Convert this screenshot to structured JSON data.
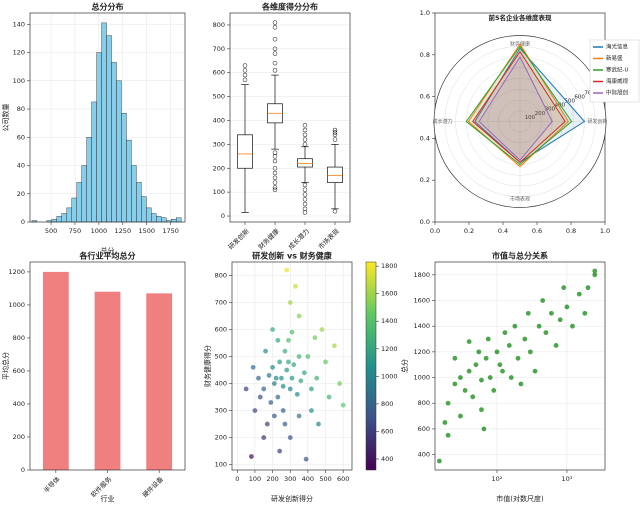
{
  "chart_data": [
    {
      "type": "histogram",
      "title": "总分分布",
      "xlabel": "总分",
      "ylabel": "公司数量",
      "color": "#87ceeb",
      "grid": true,
      "bins": [
        300,
        352,
        404,
        456,
        508,
        560,
        612,
        664,
        716,
        768,
        820,
        872,
        924,
        976,
        1028,
        1080,
        1132,
        1184,
        1236,
        1288,
        1340,
        1392,
        1444,
        1496,
        1548,
        1600,
        1652,
        1704,
        1756,
        1808,
        1860
      ],
      "values": [
        1,
        0,
        0,
        1,
        2,
        4,
        6,
        10,
        17,
        28,
        40,
        60,
        85,
        120,
        141,
        132,
        113,
        100,
        77,
        58,
        40,
        28,
        18,
        10,
        6,
        4,
        3,
        1,
        2,
        3
      ],
      "xlim": [
        280,
        1900
      ],
      "xticks": [
        500,
        750,
        1000,
        1250,
        1500,
        1750
      ],
      "ylim": [
        0,
        148
      ],
      "yticks": [
        0,
        20,
        40,
        60,
        80,
        100,
        120,
        140
      ]
    },
    {
      "type": "box",
      "title": "各维度得分分布",
      "grid": true,
      "categories": [
        "研发创新",
        "财务健康",
        "成长潜力",
        "市场表现"
      ],
      "boxes": [
        {
          "whislo": 15,
          "q1": 200,
          "med": 260,
          "q3": 340,
          "whishi": 550,
          "fliers": [
            570,
            590,
            610,
            630
          ]
        },
        {
          "whislo": 280,
          "q1": 390,
          "med": 430,
          "q3": 470,
          "whishi": 590,
          "fliers": [
            610,
            640,
            680,
            700,
            740,
            790,
            810,
            265,
            250,
            230,
            200,
            180,
            160,
            140,
            120,
            110
          ]
        },
        {
          "whislo": 140,
          "q1": 205,
          "med": 220,
          "q3": 240,
          "whishi": 290,
          "fliers": [
            300,
            320,
            340,
            360,
            380,
            130,
            110,
            90,
            70,
            50,
            30,
            15
          ]
        },
        {
          "whislo": 30,
          "q1": 140,
          "med": 170,
          "q3": 205,
          "whishi": 300,
          "fliers": [
            320,
            340,
            350,
            360,
            20
          ]
        }
      ],
      "ylim": [
        -25,
        850
      ],
      "yticks": [
        0,
        100,
        200,
        300,
        400,
        500,
        600,
        700,
        800
      ]
    },
    {
      "type": "radar",
      "title": "前5名企业各维度表现",
      "axes": [
        "研发创新",
        "财务健康",
        "成长潜力",
        "市场表现"
      ],
      "rlim": [
        0,
        800
      ],
      "rticks": [
        100,
        200,
        300,
        400,
        500,
        600,
        700
      ],
      "xlim": [
        0,
        1
      ],
      "ylim": [
        0,
        1
      ],
      "xticks": [
        {
          "value": 0,
          "label": "0.0"
        },
        0.2,
        0.4,
        0.6,
        0.8,
        {
          "value": 1,
          "label": "1.0"
        }
      ],
      "yticks": [
        {
          "value": 0,
          "label": "0.0"
        },
        0.2,
        0.4,
        0.6,
        0.8,
        {
          "value": 1,
          "label": "1.0"
        }
      ],
      "series": [
        {
          "name": "海光信息",
          "color": "#1f77b4",
          "values": [
            600,
            680,
            420,
            380
          ]
        },
        {
          "name": "新易盛",
          "color": "#ff7f0e",
          "values": [
            450,
            720,
            480,
            420
          ]
        },
        {
          "name": "寒武纪-U",
          "color": "#2ca02c",
          "values": [
            480,
            700,
            500,
            400
          ]
        },
        {
          "name": "海康威视",
          "color": "#d62728",
          "values": [
            420,
            650,
            440,
            380
          ]
        },
        {
          "name": "中际旭创",
          "color": "#9467bd",
          "values": [
            300,
            600,
            380,
            360
          ]
        }
      ]
    },
    {
      "type": "bar",
      "title": "各行业平均总分",
      "xlabel": "行业",
      "ylabel": "平均总分",
      "color": "#f08080",
      "categories": [
        "半导体",
        "软件服务",
        "硬件设备"
      ],
      "values": [
        1200,
        1080,
        1070
      ],
      "ylim": [
        0,
        1260
      ],
      "yticks": [
        0,
        200,
        400,
        600,
        800,
        1000,
        1200
      ]
    },
    {
      "type": "scatter",
      "title": "研发创新 vs 财务健康",
      "xlabel": "研发创新得分",
      "ylabel": "财务健康得分",
      "clabel": "总分",
      "grid": true,
      "x": [
        250,
        280,
        210,
        300,
        180,
        320,
        350,
        270,
        230,
        150,
        200,
        260,
        310,
        290,
        240,
        190,
        340,
        380,
        220,
        260,
        120,
        100,
        90,
        400,
        420,
        450,
        500,
        550,
        480,
        350,
        300,
        280,
        330,
        200,
        160,
        130,
        270,
        300,
        240,
        350,
        420,
        460,
        520,
        580,
        600,
        170,
        80,
        390,
        50,
        150,
        230,
        310,
        360,
        210,
        290,
        440
      ],
      "y": [
        420,
        450,
        400,
        380,
        430,
        470,
        500,
        520,
        350,
        380,
        460,
        300,
        420,
        560,
        480,
        330,
        360,
        440,
        420,
        390,
        420,
        300,
        460,
        500,
        380,
        420,
        480,
        540,
        600,
        650,
        700,
        820,
        760,
        600,
        520,
        350,
        250,
        200,
        150,
        280,
        300,
        250,
        350,
        400,
        320,
        250,
        130,
        120,
        380,
        200,
        560,
        590,
        410,
        280,
        480,
        570
      ],
      "c": [
        1050,
        1120,
        950,
        1000,
        930,
        1200,
        1300,
        1250,
        850,
        800,
        1020,
        780,
        1100,
        1380,
        1150,
        760,
        1020,
        1220,
        990,
        1010,
        800,
        650,
        850,
        1350,
        1150,
        1280,
        1450,
        1620,
        1600,
        1550,
        1620,
        1780,
        1700,
        1250,
        1050,
        700,
        750,
        700,
        620,
        900,
        1050,
        1000,
        1300,
        1500,
        1420,
        600,
        380,
        700,
        620,
        550,
        1200,
        1350,
        1180,
        720,
        1200,
        1500
      ],
      "xlim": [
        -30,
        650
      ],
      "xticks": [
        0,
        100,
        200,
        300,
        400,
        500,
        600
      ],
      "ylim": [
        80,
        850
      ],
      "yticks": [
        100,
        200,
        300,
        400,
        500,
        600,
        700,
        800
      ],
      "clim": [
        320,
        1830
      ],
      "cticks": [
        400,
        600,
        800,
        1000,
        1200,
        1400,
        1600,
        1800
      ]
    },
    {
      "type": "scatter",
      "title": "市值与总分关系",
      "xlabel": "市值(对数尺度)",
      "color": "#008000",
      "grid": true,
      "log_x": true,
      "x": [
        20,
        25,
        30,
        35,
        40,
        50,
        60,
        70,
        80,
        100,
        120,
        150,
        200,
        250,
        300,
        400,
        500,
        600,
        800,
        1000,
        1500,
        2000,
        2500,
        2500,
        1800,
        30,
        20,
        15,
        45,
        90,
        130,
        180,
        220,
        350,
        450,
        700,
        900,
        1200,
        40,
        25,
        55,
        110,
        160,
        280,
        60,
        18,
        75,
        65
      ],
      "y": [
        800,
        950,
        1000,
        900,
        1050,
        1100,
        980,
        1150,
        1000,
        1200,
        1050,
        1250,
        1150,
        1300,
        1200,
        1400,
        1350,
        1500,
        1450,
        1550,
        1650,
        1700,
        1800,
        1830,
        1500,
        700,
        550,
        350,
        850,
        900,
        1350,
        1400,
        950,
        1050,
        1600,
        1250,
        1700,
        1400,
        1280,
        1150,
        1200,
        1100,
        1000,
        1500,
        750,
        650,
        1300,
        600
      ],
      "xlim": [
        13,
        3500
      ],
      "xticks": [
        {
          "value": 100,
          "label": "10²"
        },
        {
          "value": 1000,
          "label": "10³"
        }
      ],
      "ylim": [
        280,
        1900
      ],
      "yticks": [
        400,
        600,
        800,
        1000,
        1200,
        1400,
        1600,
        1800
      ]
    }
  ]
}
